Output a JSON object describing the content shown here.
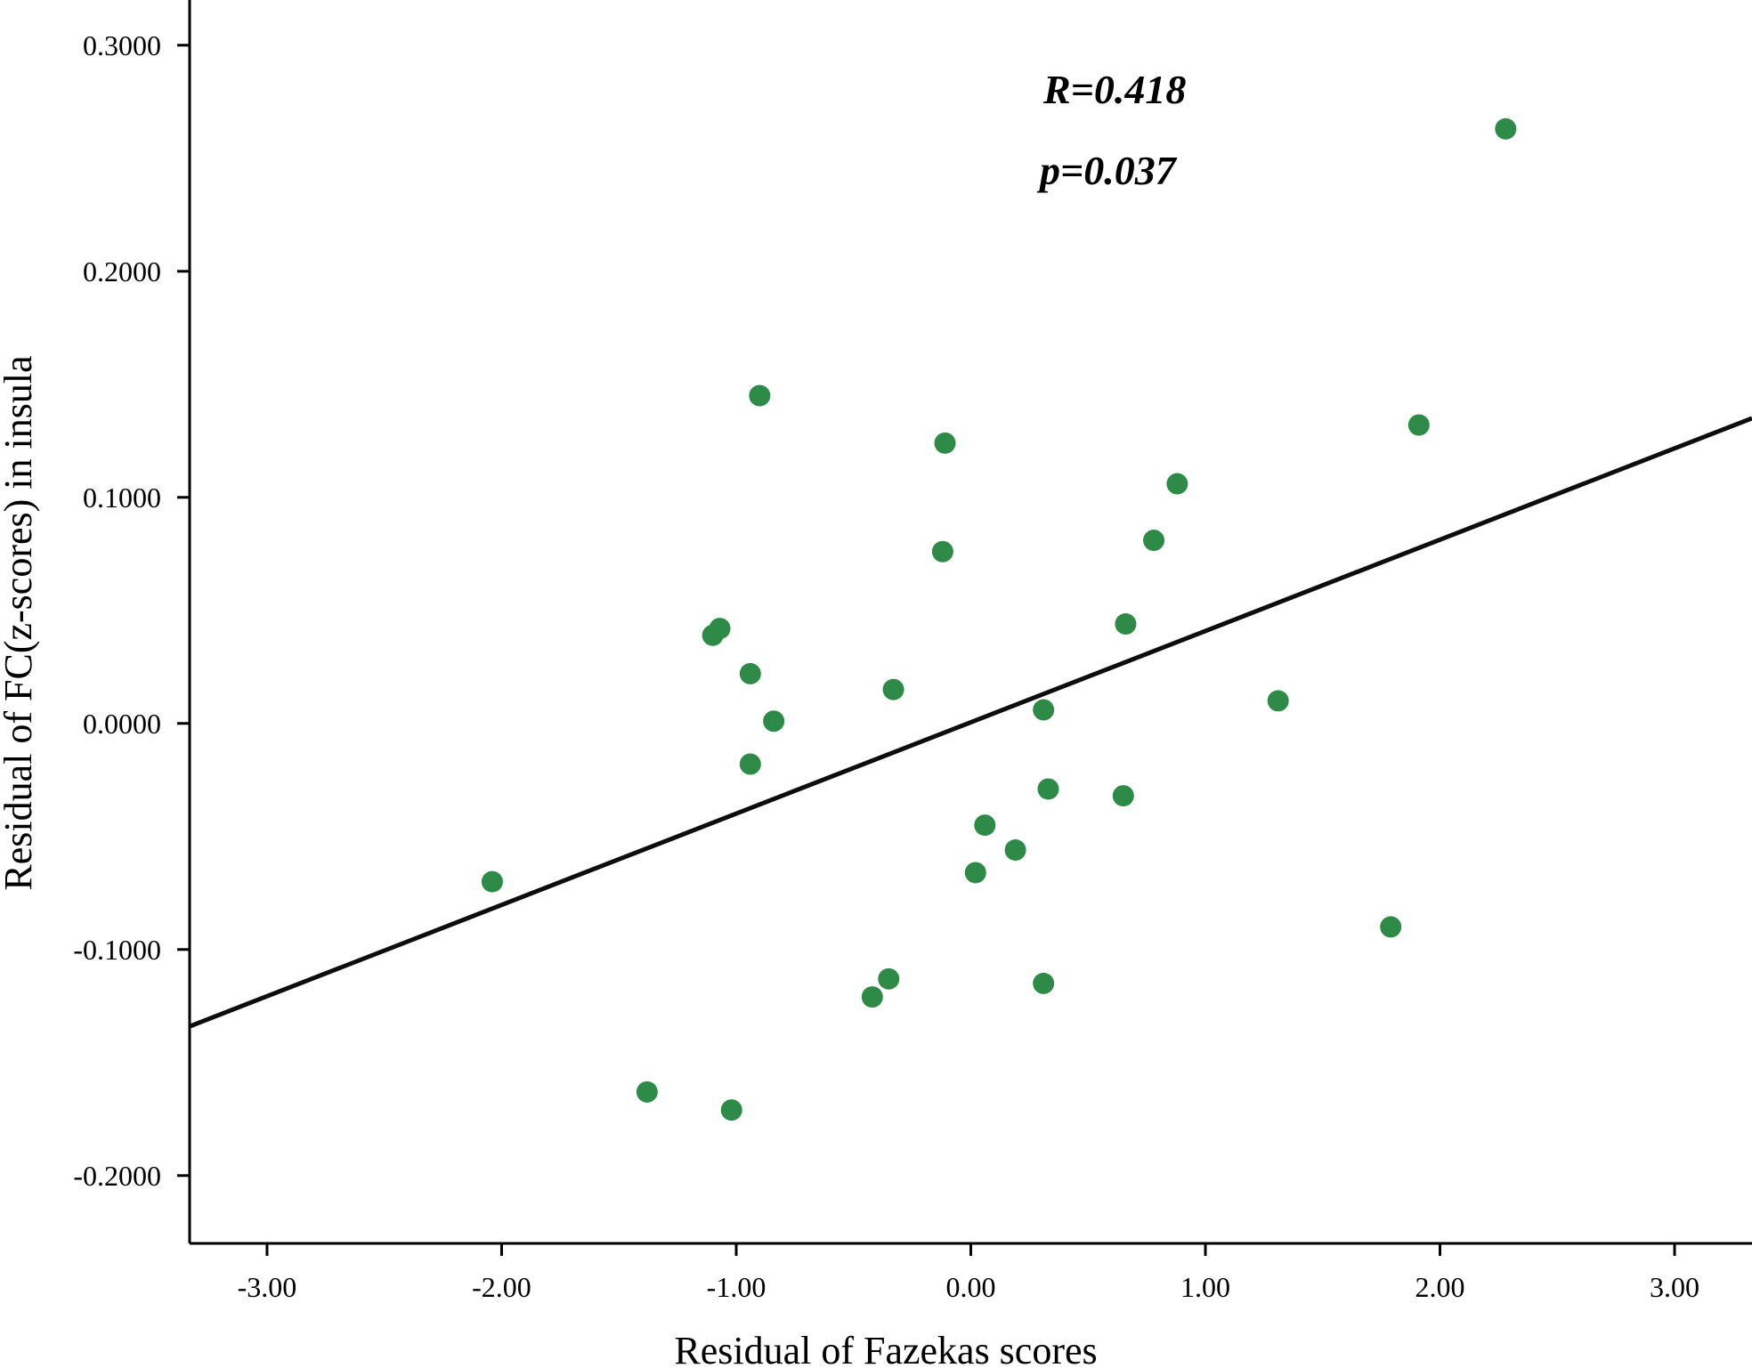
{
  "chart_data": {
    "type": "scatter",
    "title": "",
    "xlabel": "Residual of Fazekas scores",
    "ylabel": "Residual of FC(z-scores) in insula",
    "xlim": [
      -3.33,
      3.33
    ],
    "ylim": [
      -0.23,
      0.32
    ],
    "x_ticks": [
      -3,
      -2,
      -1,
      0,
      1,
      2,
      3
    ],
    "x_tick_labels": [
      "-3.00",
      "-2.00",
      "-1.00",
      "0.00",
      "1.00",
      "2.00",
      "3.00"
    ],
    "y_ticks": [
      0.3,
      0.2,
      0.1,
      0.0,
      -0.1,
      -0.2
    ],
    "y_tick_labels": [
      "0.3000",
      "0.2000",
      "0.1000",
      "0.0000",
      "-0.1000",
      "-0.2000"
    ],
    "grid": false,
    "point_color": "#2e8b47",
    "line_color": "#0d0d0d",
    "annotations": {
      "r_text": "R=0.418",
      "p_text": "p=0.037"
    },
    "fit_line": {
      "x": [
        -3.33,
        3.33
      ],
      "y": [
        -0.134,
        0.135
      ]
    },
    "points": [
      {
        "x": -2.04,
        "y": -0.07
      },
      {
        "x": -1.38,
        "y": -0.163
      },
      {
        "x": -1.02,
        "y": -0.171
      },
      {
        "x": -1.1,
        "y": 0.039
      },
      {
        "x": -1.07,
        "y": 0.042
      },
      {
        "x": -0.94,
        "y": 0.022
      },
      {
        "x": -0.94,
        "y": -0.018
      },
      {
        "x": -0.9,
        "y": 0.145
      },
      {
        "x": -0.84,
        "y": 0.001
      },
      {
        "x": -0.42,
        "y": -0.121
      },
      {
        "x": -0.35,
        "y": -0.113
      },
      {
        "x": -0.33,
        "y": 0.015
      },
      {
        "x": -0.12,
        "y": 0.076
      },
      {
        "x": -0.11,
        "y": 0.124
      },
      {
        "x": 0.02,
        "y": -0.066
      },
      {
        "x": 0.06,
        "y": -0.045
      },
      {
        "x": 0.19,
        "y": -0.056
      },
      {
        "x": 0.31,
        "y": 0.006
      },
      {
        "x": 0.31,
        "y": -0.115
      },
      {
        "x": 0.33,
        "y": -0.029
      },
      {
        "x": 0.65,
        "y": -0.032
      },
      {
        "x": 0.66,
        "y": 0.044
      },
      {
        "x": 0.78,
        "y": 0.081
      },
      {
        "x": 0.88,
        "y": 0.106
      },
      {
        "x": 1.31,
        "y": 0.01
      },
      {
        "x": 1.79,
        "y": -0.09
      },
      {
        "x": 1.91,
        "y": 0.132
      },
      {
        "x": 2.28,
        "y": 0.263
      }
    ]
  }
}
